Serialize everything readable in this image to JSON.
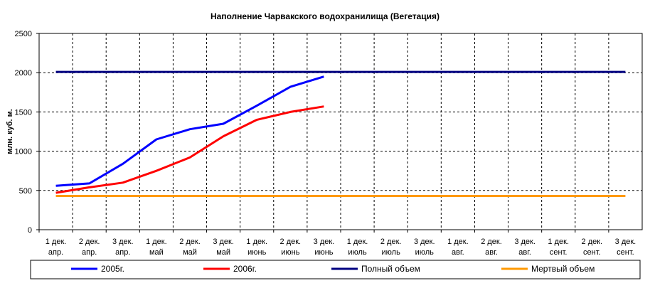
{
  "chart_data": {
    "type": "line",
    "title": "Наполнение Чарвакского водохранилища  (Вегетация)",
    "ylabel": "млн. куб. м.",
    "xlabel": "",
    "ylim": [
      0,
      2500
    ],
    "yticks": [
      0,
      500,
      1000,
      1500,
      2000,
      2500
    ],
    "grid": "dashed",
    "legend_position": "bottom",
    "categories": [
      [
        "1 дек.",
        "апр."
      ],
      [
        "2 дек.",
        "апр."
      ],
      [
        "3 дек.",
        "апр."
      ],
      [
        "1 дек.",
        "май"
      ],
      [
        "2 дек.",
        "май"
      ],
      [
        "3 дек.",
        "май"
      ],
      [
        "1 дек.",
        "июнь"
      ],
      [
        "2 дек.",
        "июнь"
      ],
      [
        "3 дек.",
        "июнь"
      ],
      [
        "1 дек.",
        "июль"
      ],
      [
        "2 дек.",
        "июль"
      ],
      [
        "3 дек.",
        "июль"
      ],
      [
        "1 дек.",
        "авг."
      ],
      [
        "2 дек.",
        "авг."
      ],
      [
        "3 дек.",
        "авг."
      ],
      [
        "1 дек.",
        "сент."
      ],
      [
        "2 дек.",
        "сент."
      ],
      [
        "3 дек.",
        "сент."
      ]
    ],
    "series": [
      {
        "name": "2005г.",
        "color": "#0000ff",
        "values": [
          560,
          590,
          840,
          1150,
          1280,
          1350,
          1580,
          1820,
          1950,
          null,
          null,
          null,
          null,
          null,
          null,
          null,
          null,
          null
        ]
      },
      {
        "name": "2006г.",
        "color": "#ff0000",
        "values": [
          470,
          540,
          600,
          750,
          920,
          1190,
          1400,
          1500,
          1570,
          null,
          null,
          null,
          null,
          null,
          null,
          null,
          null,
          null
        ]
      },
      {
        "name": "Полный объем",
        "color": "#000080",
        "values": [
          2010,
          2010,
          2010,
          2010,
          2010,
          2010,
          2010,
          2010,
          2010,
          2010,
          2010,
          2010,
          2010,
          2010,
          2010,
          2010,
          2010,
          2010
        ]
      },
      {
        "name": "Мертвый объем",
        "color": "#ff9900",
        "values": [
          430,
          430,
          430,
          430,
          430,
          430,
          430,
          430,
          430,
          430,
          430,
          430,
          430,
          430,
          430,
          430,
          430,
          430
        ]
      }
    ]
  }
}
